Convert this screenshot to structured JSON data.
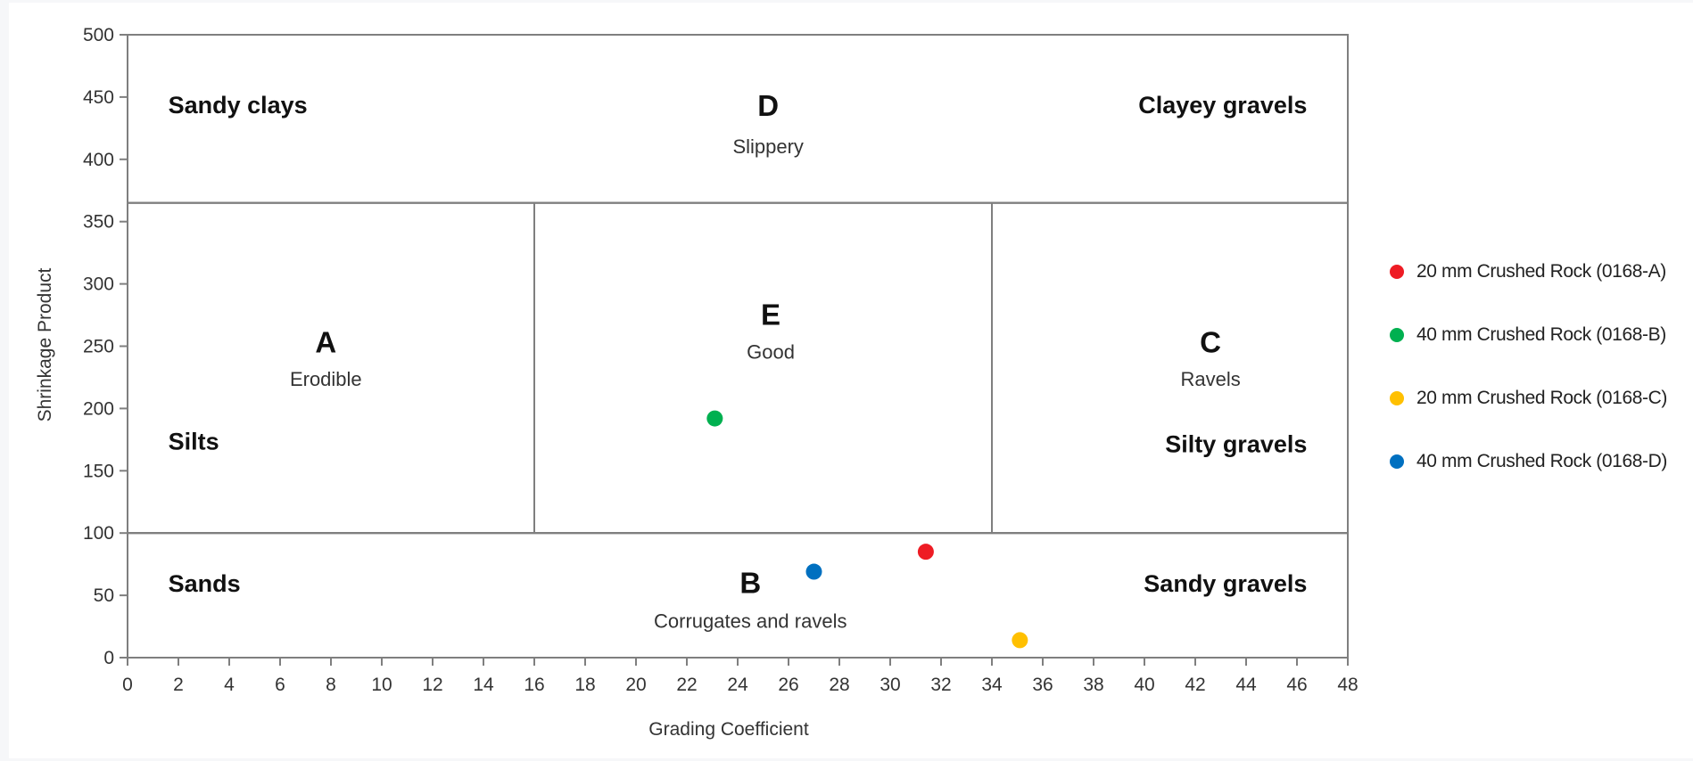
{
  "chart_data": {
    "type": "scatter",
    "xlabel": "Grading Coefficient",
    "ylabel": "Shrinkage Product",
    "xlim": [
      0,
      48
    ],
    "ylim": [
      0,
      500
    ],
    "x_ticks": [
      "0",
      "2",
      "4",
      "6",
      "8",
      "10",
      "12",
      "14",
      "16",
      "18",
      "20",
      "22",
      "24",
      "26",
      "28",
      "30",
      "32",
      "34",
      "36",
      "38",
      "40",
      "42",
      "44",
      "46",
      "48"
    ],
    "y_ticks": [
      "0",
      "50",
      "100",
      "150",
      "200",
      "250",
      "300",
      "350",
      "400",
      "450",
      "500"
    ],
    "grid": false,
    "legend_position": "right",
    "boundaries": {
      "horizontal": [
        100,
        365
      ],
      "vertical": [
        16,
        34
      ],
      "vertical_y_range": [
        100,
        365
      ]
    },
    "regions": [
      {
        "letter": "D",
        "desc": "Slippery",
        "x": 25.2,
        "letter_y": 435,
        "desc_y": 405
      },
      {
        "letter": "A",
        "desc": "Erodible",
        "x": 7.8,
        "letter_y": 245,
        "desc_y": 218
      },
      {
        "letter": "E",
        "desc": "Good",
        "x": 25.3,
        "letter_y": 267,
        "desc_y": 240
      },
      {
        "letter": "C",
        "desc": "Ravels",
        "x": 42.6,
        "letter_y": 245,
        "desc_y": 218
      },
      {
        "letter": "B",
        "desc": "Corrugates and ravels",
        "x": 24.5,
        "letter_y": 52,
        "desc_y": 24
      }
    ],
    "soil_labels": [
      {
        "text": "Sandy clays",
        "x": 1.6,
        "y": 437,
        "anchor": "start"
      },
      {
        "text": "Clayey gravels",
        "x": 46.4,
        "y": 437,
        "anchor": "end"
      },
      {
        "text": "Silts",
        "x": 1.6,
        "y": 167,
        "anchor": "start"
      },
      {
        "text": "Silty gravels",
        "x": 46.4,
        "y": 165,
        "anchor": "end"
      },
      {
        "text": "Sands",
        "x": 1.6,
        "y": 53,
        "anchor": "start"
      },
      {
        "text": "Sandy gravels",
        "x": 46.4,
        "y": 53,
        "anchor": "end"
      }
    ],
    "series": [
      {
        "name": "20 mm Crushed Rock (0168-A)",
        "color": "#ee1c24",
        "x": 31.4,
        "y": 85
      },
      {
        "name": "40 mm Crushed Rock (0168-B)",
        "color": "#00b050",
        "x": 23.1,
        "y": 192
      },
      {
        "name": "20 mm Crushed Rock (0168-C)",
        "color": "#ffc000",
        "x": 35.1,
        "y": 14
      },
      {
        "name": "40 mm Crushed Rock (0168-D)",
        "color": "#0070c0",
        "x": 27.0,
        "y": 69
      }
    ]
  }
}
